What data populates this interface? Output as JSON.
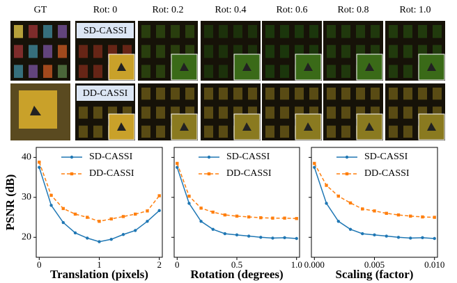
{
  "figure": {
    "column_labels": [
      "GT",
      "Rot: 0",
      "Rot: 0.2",
      "Rot: 0.4",
      "Rot: 0.6",
      "Rot: 0.8",
      "Rot: 1.0"
    ],
    "row_labels": [
      "SD-CASSI",
      "DD-CASSI"
    ]
  },
  "chart_data": [
    {
      "type": "line",
      "xlabel": "Translation (pixels)",
      "ylabel": "PSNR (dB)",
      "x": [
        0,
        0.2,
        0.4,
        0.6,
        0.8,
        1,
        1.2,
        1.4,
        1.6,
        1.8,
        2
      ],
      "xlim": [
        -0.05,
        2.05
      ],
      "xticks": [
        0,
        1,
        2
      ],
      "ylim": [
        15,
        42.5
      ],
      "yticks": [
        20,
        30,
        40
      ],
      "legend": "upper right",
      "series": [
        {
          "name": "SD-CASSI",
          "color": "#1f77b4",
          "values": [
            37.5,
            28,
            23.7,
            21.1,
            19.8,
            18.9,
            19.5,
            20.7,
            21.7,
            24,
            26.7
          ]
        },
        {
          "name": "DD-CASSI",
          "color": "#ff7f0e",
          "values": [
            38.8,
            30.5,
            27.2,
            25.8,
            25,
            24,
            24.6,
            25.2,
            25.8,
            26.6,
            30.4
          ]
        }
      ]
    },
    {
      "type": "line",
      "xlabel": "Rotation (degrees)",
      "x": [
        0,
        0.1,
        0.2,
        0.3,
        0.4,
        0.5,
        0.6,
        0.7,
        0.8,
        0.9,
        1
      ],
      "xlim": [
        -0.025,
        1.025
      ],
      "xticks": [
        0,
        0.5,
        {
          "value": 1,
          "label": "1.0"
        }
      ],
      "ylim": [
        15,
        42.5
      ],
      "yticks": [
        20,
        30,
        40
      ],
      "legend": "upper right",
      "series": [
        {
          "name": "SD-CASSI",
          "color": "#1f77b4",
          "values": [
            37.5,
            28.5,
            24,
            22,
            20.9,
            20.6,
            20.3,
            20,
            19.8,
            19.9,
            19.7
          ]
        },
        {
          "name": "DD-CASSI",
          "color": "#ff7f0e",
          "values": [
            38.5,
            30.3,
            27.3,
            26.3,
            25.6,
            25.3,
            25.1,
            24.9,
            24.8,
            24.8,
            24.7
          ]
        }
      ]
    },
    {
      "type": "line",
      "xlabel": "Scaling (factor)",
      "x": [
        0,
        0.001,
        0.002,
        0.003,
        0.004,
        0.005,
        0.006,
        0.007,
        0.008,
        0.009,
        0.01
      ],
      "xlim": [
        -0.00025,
        0.01025
      ],
      "xticks": [
        {
          "value": 0,
          "label": "0.000"
        },
        {
          "value": 0.005,
          "label": "0.005"
        },
        {
          "value": 0.01,
          "label": "0.010"
        }
      ],
      "ylim": [
        15,
        42.5
      ],
      "yticks": [
        20,
        30,
        40
      ],
      "legend": "upper right",
      "series": [
        {
          "name": "SD-CASSI",
          "color": "#1f77b4",
          "values": [
            37.5,
            28.5,
            24,
            22,
            20.9,
            20.6,
            20.3,
            20,
            19.8,
            19.9,
            19.7
          ]
        },
        {
          "name": "DD-CASSI",
          "color": "#ff7f0e",
          "values": [
            38.5,
            33,
            30.3,
            28.6,
            27.1,
            26.6,
            26,
            25.6,
            25.3,
            25.1,
            25
          ]
        }
      ]
    }
  ]
}
